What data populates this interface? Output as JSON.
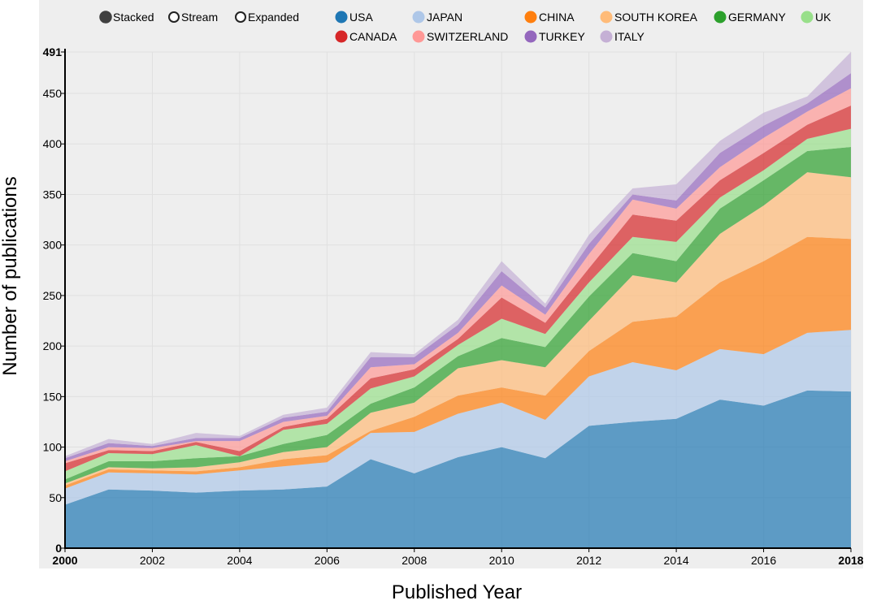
{
  "controls": {
    "modes": [
      {
        "label": "Stacked",
        "selected": true
      },
      {
        "label": "Stream",
        "selected": false
      },
      {
        "label": "Expanded",
        "selected": false
      }
    ]
  },
  "chart_data": {
    "type": "area",
    "stacked": true,
    "title": "",
    "xlabel": "Published Year",
    "ylabel": "Number of publications",
    "x": [
      2000,
      2001,
      2002,
      2003,
      2004,
      2005,
      2006,
      2007,
      2008,
      2009,
      2010,
      2011,
      2012,
      2013,
      2014,
      2015,
      2016,
      2017,
      2018
    ],
    "xlim": [
      2000,
      2018
    ],
    "ylim": [
      0,
      491
    ],
    "xticks": [
      "2000",
      "2002",
      "2004",
      "2006",
      "2008",
      "2010",
      "2012",
      "2014",
      "2016",
      "2018"
    ],
    "yticks": [
      "0",
      "50",
      "100",
      "150",
      "200",
      "250",
      "300",
      "350",
      "400",
      "450",
      "491"
    ],
    "series": [
      {
        "name": "USA",
        "color": "#1f77b4",
        "values": [
          43,
          58,
          57,
          55,
          57,
          58,
          61,
          88,
          74,
          90,
          100,
          89,
          121,
          125,
          128,
          147,
          141,
          156,
          155
        ]
      },
      {
        "name": "JAPAN",
        "color": "#aec7e8",
        "values": [
          16,
          17,
          17,
          18,
          20,
          23,
          24,
          26,
          41,
          43,
          44,
          38,
          49,
          59,
          48,
          50,
          51,
          57,
          61
        ]
      },
      {
        "name": "CHINA",
        "color": "#ff7f0e",
        "values": [
          3,
          3,
          3,
          3,
          3,
          7,
          7,
          2,
          15,
          18,
          15,
          24,
          25,
          40,
          53,
          66,
          92,
          95,
          90
        ]
      },
      {
        "name": "SOUTH KOREA",
        "color": "#ffbb78",
        "values": [
          2,
          2,
          2,
          4,
          5,
          7,
          8,
          18,
          14,
          27,
          27,
          28,
          30,
          46,
          34,
          48,
          55,
          64,
          61
        ]
      },
      {
        "name": "GERMANY",
        "color": "#2ca02c",
        "values": [
          4,
          6,
          7,
          9,
          6,
          8,
          12,
          9,
          15,
          12,
          22,
          20,
          24,
          22,
          21,
          25,
          25,
          21,
          30
        ]
      },
      {
        "name": "UK",
        "color": "#98df8a",
        "values": [
          8,
          8,
          7,
          13,
          0,
          14,
          11,
          15,
          11,
          11,
          19,
          13,
          14,
          16,
          19,
          11,
          10,
          12,
          18
        ]
      },
      {
        "name": "CANADA",
        "color": "#d62728",
        "values": [
          8,
          3,
          3,
          3,
          5,
          3,
          5,
          10,
          7,
          6,
          21,
          11,
          14,
          22,
          21,
          17,
          17,
          14,
          23
        ]
      },
      {
        "name": "SWITZERLAND",
        "color": "#ff9896",
        "values": [
          2,
          3,
          3,
          1,
          10,
          5,
          3,
          11,
          5,
          6,
          12,
          8,
          14,
          15,
          12,
          13,
          15,
          13,
          17
        ]
      },
      {
        "name": "TURKEY",
        "color": "#9467bd",
        "values": [
          3,
          4,
          2,
          3,
          3,
          4,
          4,
          10,
          7,
          8,
          14,
          7,
          10,
          5,
          8,
          14,
          12,
          8,
          15
        ]
      },
      {
        "name": "ITALY",
        "color": "#c5b0d5",
        "values": [
          2,
          4,
          2,
          5,
          2,
          3,
          4,
          5,
          3,
          5,
          10,
          4,
          9,
          6,
          16,
          12,
          13,
          7,
          21
        ]
      }
    ]
  }
}
